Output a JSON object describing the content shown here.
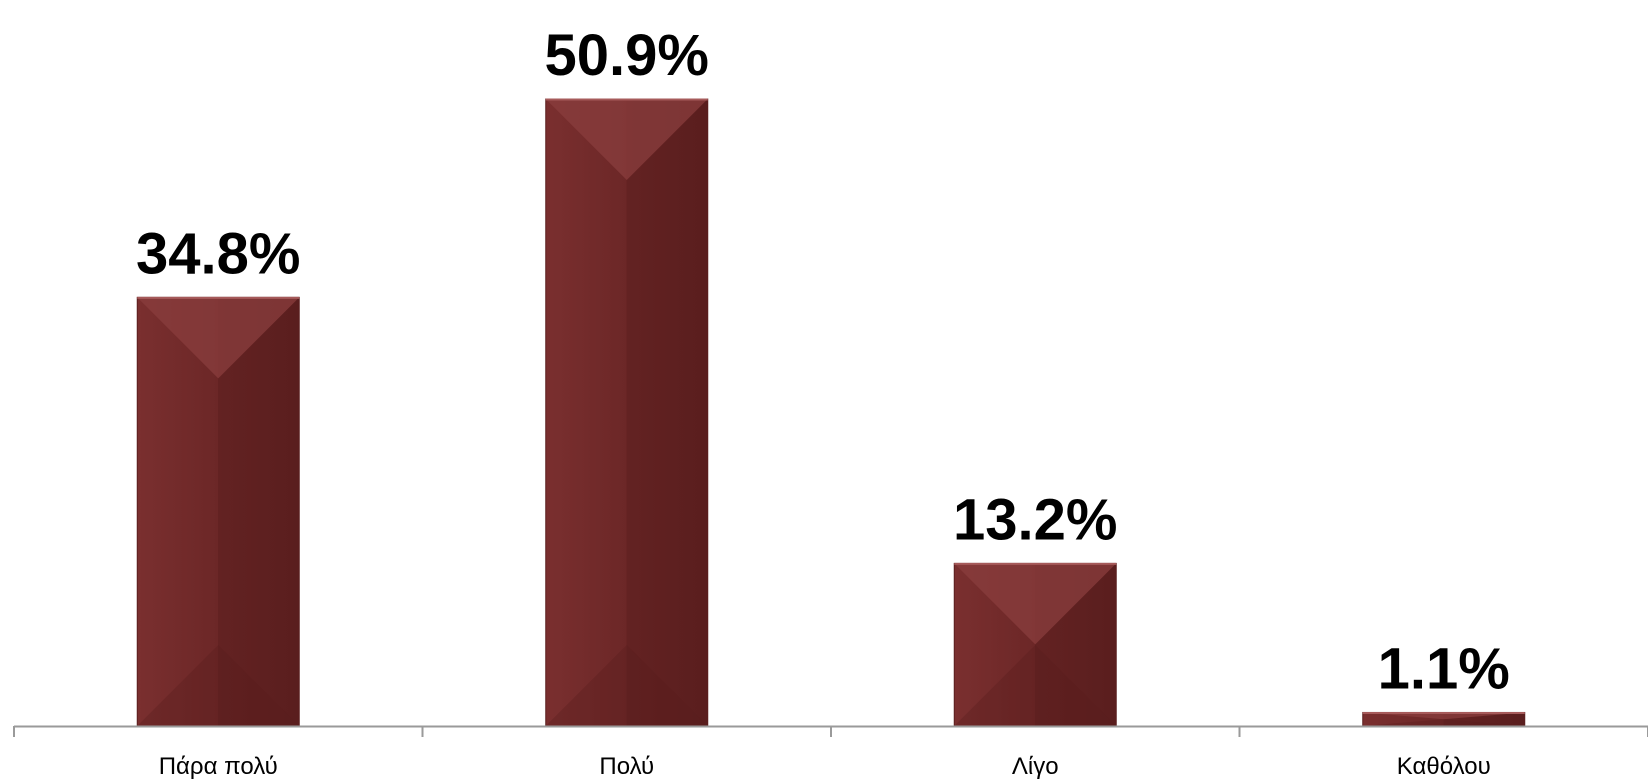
{
  "chart_data": {
    "type": "bar",
    "categories": [
      "Πάρα πολύ",
      "Πολύ",
      "Λίγο",
      "Καθόλου"
    ],
    "values": [
      34.8,
      50.9,
      13.2,
      1.1
    ],
    "value_labels": [
      "34.8%",
      "50.9%",
      "13.2%",
      "1.1%"
    ],
    "unit": "%",
    "ylim": [
      0,
      50.9
    ],
    "grid": false,
    "legend": "none",
    "colors": {
      "bar_main": "#6b2525",
      "bar_light": "#8a3e3e",
      "bar_dark": "#5a1e1e",
      "axis": "#9a9a9a",
      "text": "#000000"
    }
  }
}
